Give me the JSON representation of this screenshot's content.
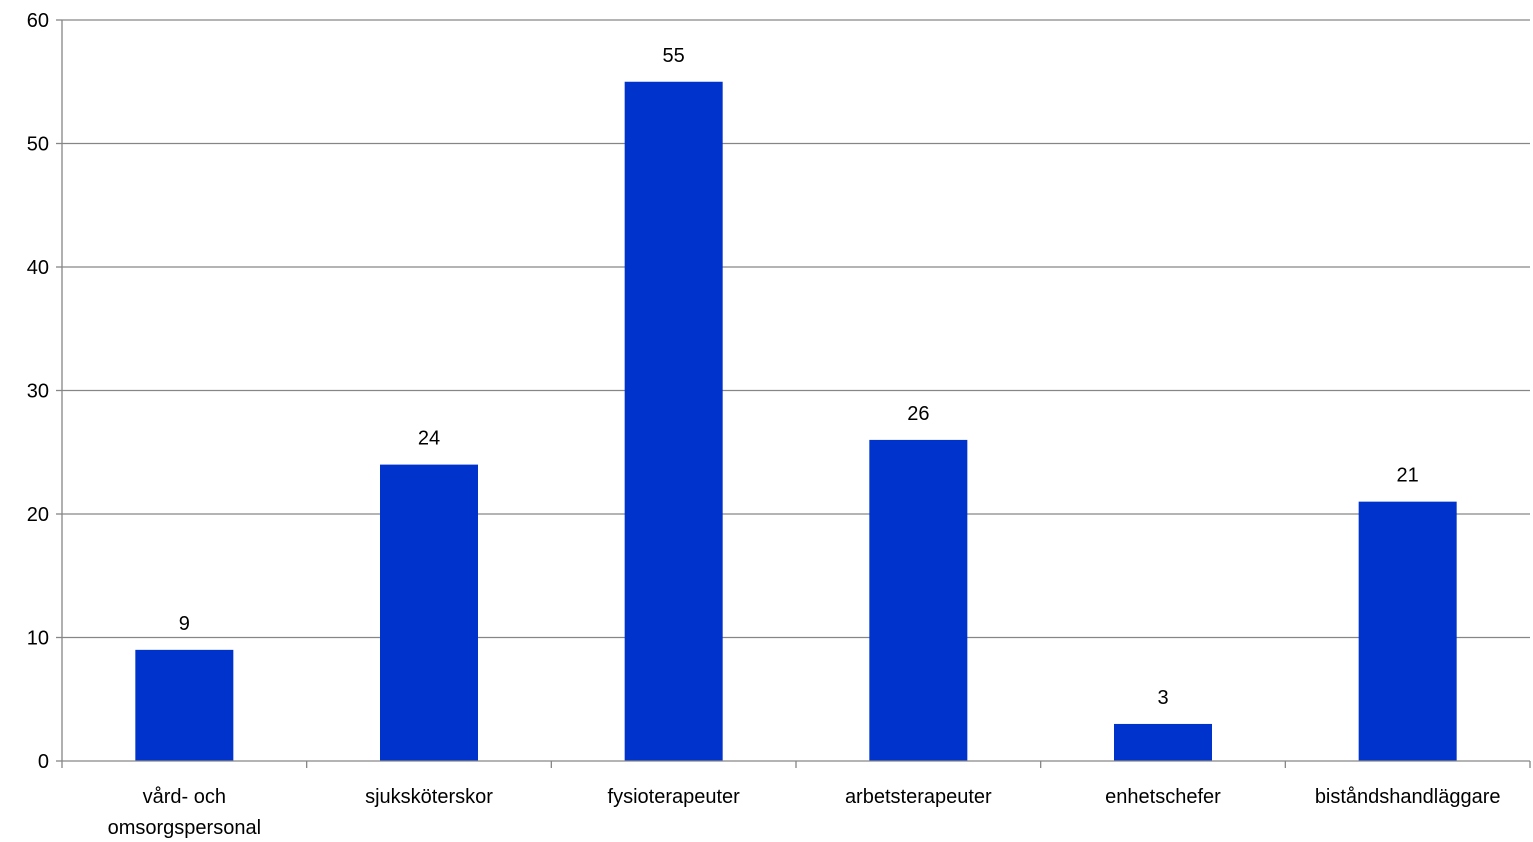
{
  "chart_data": {
    "type": "bar",
    "categories": [
      [
        "vård- och",
        "omsorgspersonal"
      ],
      [
        "sjuksköterskor"
      ],
      [
        "fysioterapeuter"
      ],
      [
        "arbetsterapeuter"
      ],
      [
        "enhetschefer"
      ],
      [
        "biståndshandläggare"
      ]
    ],
    "values": [
      9,
      24,
      55,
      26,
      3,
      21
    ],
    "ylim": [
      0,
      60
    ],
    "yticks": [
      0,
      10,
      20,
      30,
      40,
      50,
      60
    ],
    "grid": true,
    "data_labels": true,
    "legend": "none",
    "colors": {
      "bar": "#0033CC",
      "grid": "#868686",
      "axis": "#868686",
      "text": "#000000"
    }
  }
}
